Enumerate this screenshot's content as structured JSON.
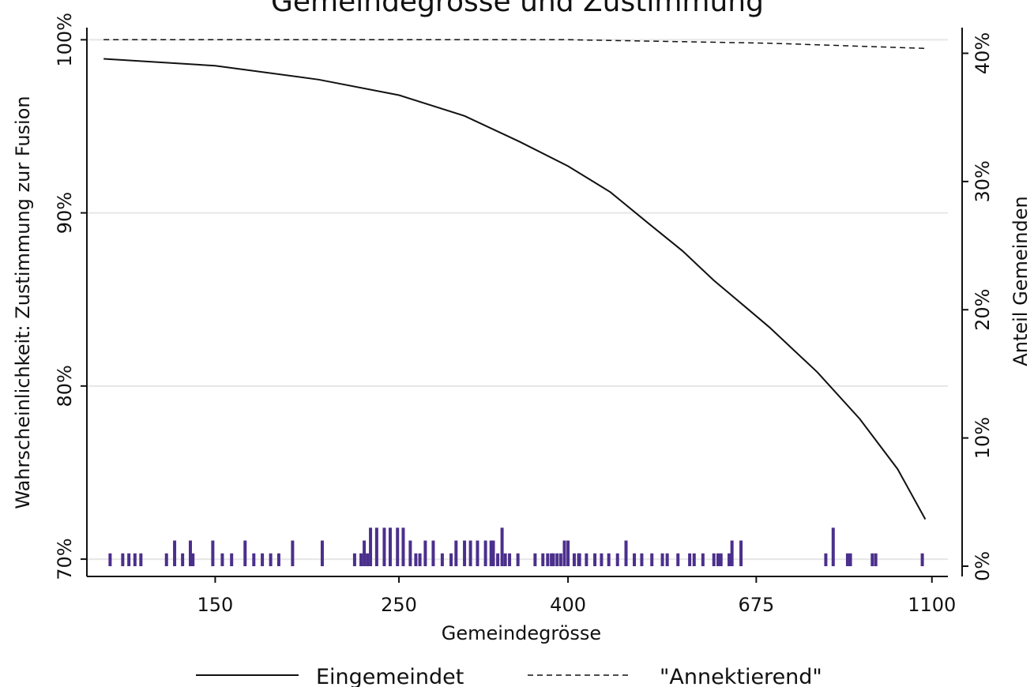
{
  "chart_data": {
    "type": "line",
    "title": "Gemeindegrösse und Zustimmung",
    "xlabel": "Gemeindegrösse",
    "ylabel": "Wahrscheinlichkeit: Zustimmung zur Fusion",
    "y2label": "Anteil Gemeinden",
    "x_scale": "log",
    "x_ticks": [
      150,
      250,
      400,
      675,
      1100
    ],
    "x_tick_labels": [
      "150",
      "250",
      "400",
      "675",
      "1100"
    ],
    "xlim": [
      105,
      1150
    ],
    "ylim": [
      0.69,
      1.007
    ],
    "y_ticks": [
      0.7,
      0.8,
      0.9,
      1.0
    ],
    "y_tick_labels": [
      "70%",
      "80%",
      "90%",
      "100%"
    ],
    "y2lim": [
      -0.008,
      0.42
    ],
    "y2_ticks": [
      0.0,
      0.1,
      0.2,
      0.3,
      0.4
    ],
    "y2_tick_labels": [
      "0%",
      "10%",
      "20%",
      "30%",
      "40%"
    ],
    "grid": true,
    "legend_position": "bottom",
    "series": [
      {
        "name": "Eingemeindet",
        "style": "solid",
        "color": "#111111",
        "x": [
          110,
          150,
          200,
          250,
          300,
          350,
          400,
          450,
          500,
          550,
          600,
          650,
          700,
          800,
          900,
          1000,
          1080
        ],
        "y": [
          0.989,
          0.985,
          0.977,
          0.968,
          0.956,
          0.941,
          0.927,
          0.912,
          0.894,
          0.878,
          0.861,
          0.847,
          0.834,
          0.808,
          0.781,
          0.752,
          0.723
        ]
      },
      {
        "name": "\"Annektierend\"",
        "style": "dashed",
        "color": "#111111",
        "x": [
          110,
          400,
          700,
          1080
        ],
        "y": [
          1.0,
          1.0,
          0.998,
          0.995
        ]
      }
    ],
    "rug": {
      "name": "Anteil Gemeinden",
      "color": "#4b2f8c",
      "axis": "right",
      "x": [
        112,
        116,
        118,
        120,
        122,
        131,
        134,
        137,
        140,
        141,
        149,
        153,
        157,
        163,
        167,
        171,
        175,
        179,
        186,
        202,
        221,
        225,
        227,
        229,
        231,
        235,
        240,
        244,
        249,
        253,
        258,
        262,
        265,
        269,
        275,
        282,
        289,
        293,
        300,
        305,
        311,
        318,
        323,
        325,
        329,
        333,
        336,
        340,
        348,
        365,
        373,
        378,
        382,
        384,
        388,
        392,
        396,
        400,
        407,
        412,
        413,
        421,
        431,
        439,
        448,
        459,
        470,
        481,
        491,
        505,
        520,
        527,
        543,
        561,
        568,
        582,
        600,
        607,
        612,
        626,
        631,
        647,
        819,
        836,
        870,
        877,
        932,
        941,
        1071
      ],
      "y": [
        0.01,
        0.01,
        0.01,
        0.01,
        0.01,
        0.01,
        0.02,
        0.01,
        0.02,
        0.01,
        0.02,
        0.01,
        0.01,
        0.02,
        0.01,
        0.01,
        0.01,
        0.01,
        0.02,
        0.02,
        0.01,
        0.01,
        0.02,
        0.01,
        0.03,
        0.03,
        0.03,
        0.03,
        0.03,
        0.03,
        0.02,
        0.01,
        0.01,
        0.02,
        0.02,
        0.01,
        0.01,
        0.02,
        0.02,
        0.02,
        0.02,
        0.02,
        0.02,
        0.02,
        0.01,
        0.03,
        0.01,
        0.01,
        0.01,
        0.01,
        0.01,
        0.01,
        0.01,
        0.01,
        0.01,
        0.01,
        0.02,
        0.02,
        0.01,
        0.01,
        0.01,
        0.01,
        0.01,
        0.01,
        0.01,
        0.01,
        0.02,
        0.01,
        0.01,
        0.01,
        0.01,
        0.01,
        0.01,
        0.01,
        0.01,
        0.01,
        0.01,
        0.01,
        0.01,
        0.01,
        0.02,
        0.02,
        0.01,
        0.03,
        0.01,
        0.01,
        0.01,
        0.01,
        0.01
      ]
    }
  }
}
